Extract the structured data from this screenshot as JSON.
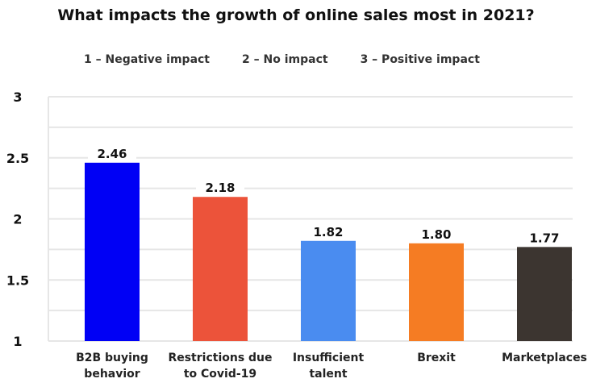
{
  "chart_data": {
    "type": "bar",
    "title": "What impacts the growth of online sales most in 2021?",
    "legend_notes": [
      "1 – Negative impact",
      "2 – No impact",
      "3 – Positive impact"
    ],
    "legend_placement": "top",
    "categories": [
      [
        "B2B buying",
        "behavior"
      ],
      [
        "Restrictions due",
        "to Covid-19"
      ],
      [
        "Insufficient",
        "talent"
      ],
      [
        "Brexit"
      ],
      [
        "Marketplaces"
      ]
    ],
    "values": [
      2.46,
      2.18,
      1.82,
      1.8,
      1.77
    ],
    "value_labels": [
      "2.46",
      "2.18",
      "1.82",
      "1.80",
      "1.77"
    ],
    "colors": [
      "#0000f5",
      "#ec533a",
      "#4a8cf0",
      "#f57c23",
      "#3c3530"
    ],
    "ylim": [
      1,
      3
    ],
    "yticks": [
      1,
      1.5,
      2,
      2.5,
      3
    ],
    "yticklabels": [
      "1",
      "1.5",
      "2",
      "2.5",
      "3"
    ],
    "grid_step": 0.25,
    "grid": true,
    "xlabel": "",
    "ylabel": ""
  }
}
